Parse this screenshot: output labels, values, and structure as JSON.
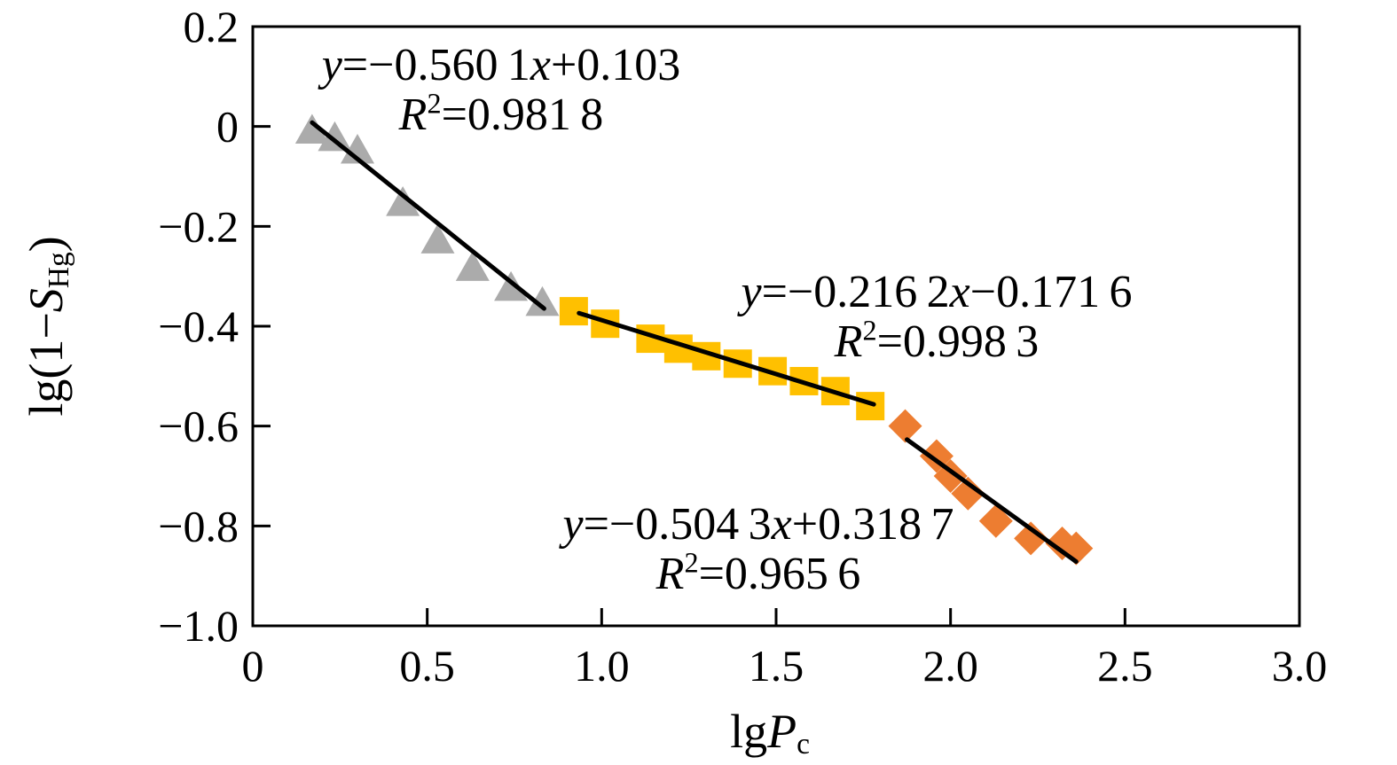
{
  "figure": {
    "background": "#ffffff",
    "axis_color": "#000000",
    "line_color": "#000000",
    "xlabel_parts": {
      "pre": "lg",
      "var": "P",
      "sub": "c"
    },
    "ylabel_parts": {
      "pre": "lg(1−",
      "var": "S",
      "sub": "Hg",
      "post": ")"
    }
  },
  "chart_data": {
    "type": "scatter",
    "title": "",
    "xlabel": "lgPc",
    "ylabel": "lg(1−SHg)",
    "xlim": [
      0,
      3.0
    ],
    "ylim": [
      -1.0,
      0.2
    ],
    "grid": false,
    "legend": false,
    "x_ticks": {
      "values": [
        0,
        0.5,
        1.0,
        1.5,
        2.0,
        2.5,
        3.0
      ],
      "labels": [
        "0",
        "0.5",
        "1.0",
        "1.5",
        "2.0",
        "2.5",
        "3.0"
      ]
    },
    "y_ticks": {
      "values": [
        0.2,
        0,
        -0.2,
        -0.4,
        -0.6,
        -0.8,
        -1.0
      ],
      "labels": [
        "0.2",
        "0",
        "−0.2",
        "−0.4",
        "−0.6",
        "−0.8",
        "−1.0"
      ]
    },
    "series": [
      {
        "name": "stage-1-triangles",
        "marker": "triangle",
        "color": "#ABABAB",
        "points": [
          [
            0.17,
            -0.005
          ],
          [
            0.235,
            -0.02
          ],
          [
            0.3,
            -0.045
          ],
          [
            0.43,
            -0.15
          ],
          [
            0.53,
            -0.225
          ],
          [
            0.63,
            -0.28
          ],
          [
            0.74,
            -0.32
          ],
          [
            0.83,
            -0.35
          ]
        ],
        "fit": {
          "slope": -0.5601,
          "intercept": 0.103,
          "x_range": [
            0.17,
            0.835
          ],
          "equation": "y=−0.560 1x+0.103",
          "r_squared": "0.981 8"
        }
      },
      {
        "name": "stage-2-squares",
        "marker": "square",
        "color": "#FFC000",
        "points": [
          [
            0.92,
            -0.37
          ],
          [
            1.01,
            -0.395
          ],
          [
            1.14,
            -0.425
          ],
          [
            1.22,
            -0.445
          ],
          [
            1.3,
            -0.46
          ],
          [
            1.39,
            -0.475
          ],
          [
            1.49,
            -0.49
          ],
          [
            1.58,
            -0.51
          ],
          [
            1.67,
            -0.53
          ],
          [
            1.77,
            -0.56
          ]
        ],
        "fit": {
          "slope": -0.2162,
          "intercept": -0.1716,
          "x_range": [
            0.935,
            1.78
          ],
          "equation": "y=−0.216 2x−0.171 6",
          "r_squared": "0.998 3"
        }
      },
      {
        "name": "stage-3-diamonds",
        "marker": "diamond",
        "color": "#ED7D31",
        "points": [
          [
            1.87,
            -0.6
          ],
          [
            1.96,
            -0.66
          ],
          [
            2.0,
            -0.7
          ],
          [
            2.05,
            -0.735
          ],
          [
            2.13,
            -0.79
          ],
          [
            2.23,
            -0.825
          ],
          [
            2.32,
            -0.835
          ],
          [
            2.36,
            -0.845
          ]
        ],
        "fit": {
          "slope": -0.5043,
          "intercept": 0.3187,
          "x_range": [
            1.875,
            2.36
          ],
          "equation": "y=−0.504 3x+0.318 7",
          "r_squared": "0.965 6"
        }
      }
    ]
  },
  "annotations": [
    {
      "v_y": "y",
      "eq_mid": "=−0.560 1",
      "v_x": "x",
      "eq_tail": "+0.103",
      "v_R": "R",
      "r_sup": "2",
      "r_tail": "=0.981 8"
    },
    {
      "v_y": "y",
      "eq_mid": "=−0.216 2",
      "v_x": "x",
      "eq_tail": "−0.171 6",
      "v_R": "R",
      "r_sup": "2",
      "r_tail": "=0.998 3"
    },
    {
      "v_y": "y",
      "eq_mid": "=−0.504 3",
      "v_x": "x",
      "eq_tail": "+0.318 7",
      "v_R": "R",
      "r_sup": "2",
      "r_tail": "=0.965 6"
    }
  ]
}
